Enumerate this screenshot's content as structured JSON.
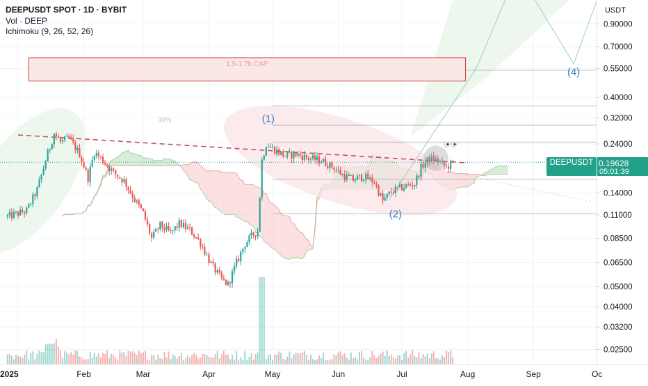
{
  "header": {
    "title": "DEEPUSDT SPOT · 1D · BYBIT",
    "volume_label": "Vol · DEEP",
    "indicator_label": "Ichimoku (9, 26, 52, 26)"
  },
  "price_axis": {
    "currency": "USDT",
    "last_price": "0.19628",
    "countdown": "05:01:39",
    "symbol_tag": "DEEPUSDT"
  },
  "colors": {
    "up": "#26a69a",
    "down": "#ef5350",
    "price_tag": "#23a089",
    "cloud_bull": "#a5d6a7",
    "cloud_bear": "#f8bbbb",
    "trendline": "#c2505e",
    "annotation": "#3d7ec2",
    "target_box": "#d43a3a"
  },
  "chart_data": {
    "type": "candlestick",
    "title": "DEEPUSDT SPOT · 1D · BYBIT",
    "y_scale": "log",
    "ylim": [
      0.0212,
      1.17
    ],
    "y_ticks": [
      0.9,
      0.7,
      0.55,
      0.4,
      0.32,
      0.24,
      0.14,
      0.11,
      0.085,
      0.065,
      0.05,
      0.04,
      0.032,
      0.025
    ],
    "y_tick_labels": [
      "0.90000",
      "0.70000",
      "0.55000",
      "0.40000",
      "0.32000",
      "0.24000",
      "0.14000",
      "0.11000",
      "0.08500",
      "0.06500",
      "0.05000",
      "0.04000",
      "0.03200",
      "0.02500"
    ],
    "x_tick_labels": [
      "2025",
      "Feb",
      "Mar",
      "Apr",
      "May",
      "Jun",
      "Jul",
      "Aug",
      "Sep",
      "Oc"
    ],
    "x_tick_dates": [
      "2025-01-01",
      "2025-02-01",
      "2025-03-01",
      "2025-04-01",
      "2025-05-01",
      "2025-06-01",
      "2025-07-01",
      "2025-08-01",
      "2025-09-01",
      "2025-10-01"
    ],
    "price_anchors": [
      [
        "2024-12-27",
        0.108
      ],
      [
        "2025-01-05",
        0.115
      ],
      [
        "2025-01-10",
        0.145
      ],
      [
        "2025-01-14",
        0.2
      ],
      [
        "2025-01-18",
        0.27
      ],
      [
        "2025-01-21",
        0.245
      ],
      [
        "2025-01-25",
        0.255
      ],
      [
        "2025-01-30",
        0.215
      ],
      [
        "2025-02-03",
        0.165
      ],
      [
        "2025-02-06",
        0.22
      ],
      [
        "2025-02-10",
        0.2
      ],
      [
        "2025-02-15",
        0.175
      ],
      [
        "2025-02-20",
        0.16
      ],
      [
        "2025-02-25",
        0.13
      ],
      [
        "2025-03-01",
        0.112
      ],
      [
        "2025-03-05",
        0.085
      ],
      [
        "2025-03-09",
        0.098
      ],
      [
        "2025-03-14",
        0.09
      ],
      [
        "2025-03-18",
        0.1
      ],
      [
        "2025-03-23",
        0.093
      ],
      [
        "2025-03-28",
        0.081
      ],
      [
        "2025-04-02",
        0.064
      ],
      [
        "2025-04-07",
        0.054
      ],
      [
        "2025-04-10",
        0.051
      ],
      [
        "2025-04-14",
        0.065
      ],
      [
        "2025-04-18",
        0.08
      ],
      [
        "2025-04-22",
        0.089
      ],
      [
        "2025-04-24",
        0.092
      ],
      [
        "2025-04-26",
        0.2
      ],
      [
        "2025-04-28",
        0.24
      ],
      [
        "2025-05-02",
        0.225
      ],
      [
        "2025-05-07",
        0.21
      ],
      [
        "2025-05-12",
        0.215
      ],
      [
        "2025-05-18",
        0.205
      ],
      [
        "2025-05-24",
        0.2
      ],
      [
        "2025-05-30",
        0.185
      ],
      [
        "2025-06-03",
        0.17
      ],
      [
        "2025-06-08",
        0.162
      ],
      [
        "2025-06-13",
        0.168
      ],
      [
        "2025-06-18",
        0.158
      ],
      [
        "2025-06-22",
        0.128
      ],
      [
        "2025-06-26",
        0.142
      ],
      [
        "2025-07-02",
        0.15
      ],
      [
        "2025-07-07",
        0.155
      ],
      [
        "2025-07-10",
        0.185
      ],
      [
        "2025-07-14",
        0.205
      ],
      [
        "2025-07-18",
        0.2
      ],
      [
        "2025-07-22",
        0.185
      ],
      [
        "2025-07-25",
        0.196
      ]
    ],
    "last_price": 0.19628,
    "annotations": {
      "target_box": {
        "label": "1.5-1.7b CAP",
        "from_date": "2025-01-06",
        "to_date": "2025-07-31",
        "price_low": 0.48,
        "price_high": 0.62
      },
      "wave_labels": [
        {
          "label": "(1)",
          "date": "2025-04-29",
          "price": 0.305
        },
        {
          "label": "(2)",
          "date": "2025-06-28",
          "price": 0.107
        },
        {
          "label": "(4)",
          "date": "2025-09-20",
          "price": 0.51
        }
      ],
      "percent_label": {
        "label": "30%",
        "date": "2025-03-11",
        "price": 0.305
      }
    }
  }
}
